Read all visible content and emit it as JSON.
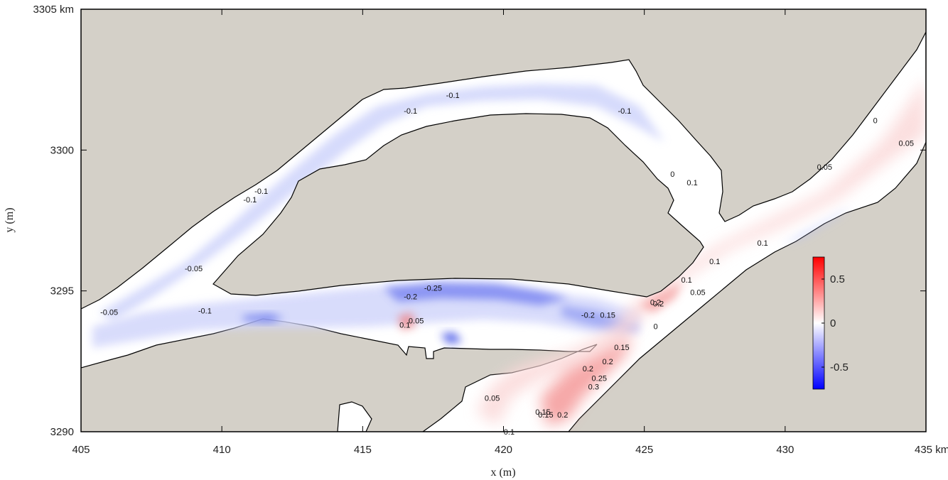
{
  "chart_data": {
    "type": "heatmap",
    "title": "",
    "xlabel": "x (m)",
    "ylabel": "y (m)",
    "xlim": [
      405,
      435
    ],
    "ylim": [
      3290,
      3305
    ],
    "x_ticks": [
      405,
      410,
      415,
      420,
      425,
      430,
      435
    ],
    "x_tick_labels": [
      "405",
      "410",
      "415",
      "420",
      "425",
      "430",
      "435 km"
    ],
    "y_ticks": [
      3290,
      3295,
      3300,
      3305
    ],
    "y_tick_labels": [
      "3290",
      "3295",
      "3300",
      "3305 km"
    ],
    "colorbar": {
      "range": [
        -0.75,
        0.75
      ],
      "ticks": [
        0.5,
        0,
        -0.5
      ],
      "tick_labels": [
        "0.5",
        "0",
        "-0.5"
      ],
      "colors": [
        "#0000ff",
        "#ffffff",
        "#ff0000"
      ]
    },
    "land_color": "#d4d0c8",
    "contour_labels": [
      {
        "x": 418.2,
        "y": 3301.95,
        "text": "-0.1"
      },
      {
        "x": 416.7,
        "y": 3301.4,
        "text": "-0.1"
      },
      {
        "x": 424.3,
        "y": 3301.4,
        "text": "-0.1"
      },
      {
        "x": 411.4,
        "y": 3298.55,
        "text": "-0.1"
      },
      {
        "x": 411.0,
        "y": 3298.25,
        "text": "-0.1"
      },
      {
        "x": 426.0,
        "y": 3299.15,
        "text": "0"
      },
      {
        "x": 426.7,
        "y": 3298.85,
        "text": "0.1"
      },
      {
        "x": 433.2,
        "y": 3301.05,
        "text": "0"
      },
      {
        "x": 434.3,
        "y": 3300.25,
        "text": "0.05"
      },
      {
        "x": 431.4,
        "y": 3299.4,
        "text": "0.05"
      },
      {
        "x": 429.2,
        "y": 3296.7,
        "text": "0.1"
      },
      {
        "x": 427.5,
        "y": 3296.05,
        "text": "0.1"
      },
      {
        "x": 426.5,
        "y": 3295.4,
        "text": "0.1"
      },
      {
        "x": 426.9,
        "y": 3294.95,
        "text": "0.05"
      },
      {
        "x": 425.4,
        "y": 3294.6,
        "text": "0.2"
      },
      {
        "x": 425.5,
        "y": 3294.55,
        "text": "0.2"
      },
      {
        "x": 425.4,
        "y": 3293.75,
        "text": "0"
      },
      {
        "x": 409.0,
        "y": 3295.8,
        "text": "-0.05"
      },
      {
        "x": 406.0,
        "y": 3294.25,
        "text": "-0.05"
      },
      {
        "x": 409.4,
        "y": 3294.3,
        "text": "-0.1"
      },
      {
        "x": 417.5,
        "y": 3295.1,
        "text": "-0.25"
      },
      {
        "x": 416.7,
        "y": 3294.8,
        "text": "-0.2"
      },
      {
        "x": 423.0,
        "y": 3294.15,
        "text": "-0.2"
      },
      {
        "x": 423.7,
        "y": 3294.15,
        "text": "0.15"
      },
      {
        "x": 416.5,
        "y": 3293.8,
        "text": "0.1"
      },
      {
        "x": 416.9,
        "y": 3293.95,
        "text": "0.05"
      },
      {
        "x": 424.2,
        "y": 3293.0,
        "text": "0.15"
      },
      {
        "x": 423.7,
        "y": 3292.5,
        "text": "0.2"
      },
      {
        "x": 423.0,
        "y": 3292.25,
        "text": "0.2"
      },
      {
        "x": 423.4,
        "y": 3291.9,
        "text": "0.25"
      },
      {
        "x": 423.2,
        "y": 3291.6,
        "text": "0.3"
      },
      {
        "x": 419.6,
        "y": 3291.2,
        "text": "0.05"
      },
      {
        "x": 421.4,
        "y": 3290.7,
        "text": "0.15"
      },
      {
        "x": 421.5,
        "y": 3290.6,
        "text": "0.15"
      },
      {
        "x": 422.1,
        "y": 3290.6,
        "text": "0.2"
      },
      {
        "x": 420.2,
        "y": 3290.0,
        "text": "0.1"
      }
    ]
  }
}
